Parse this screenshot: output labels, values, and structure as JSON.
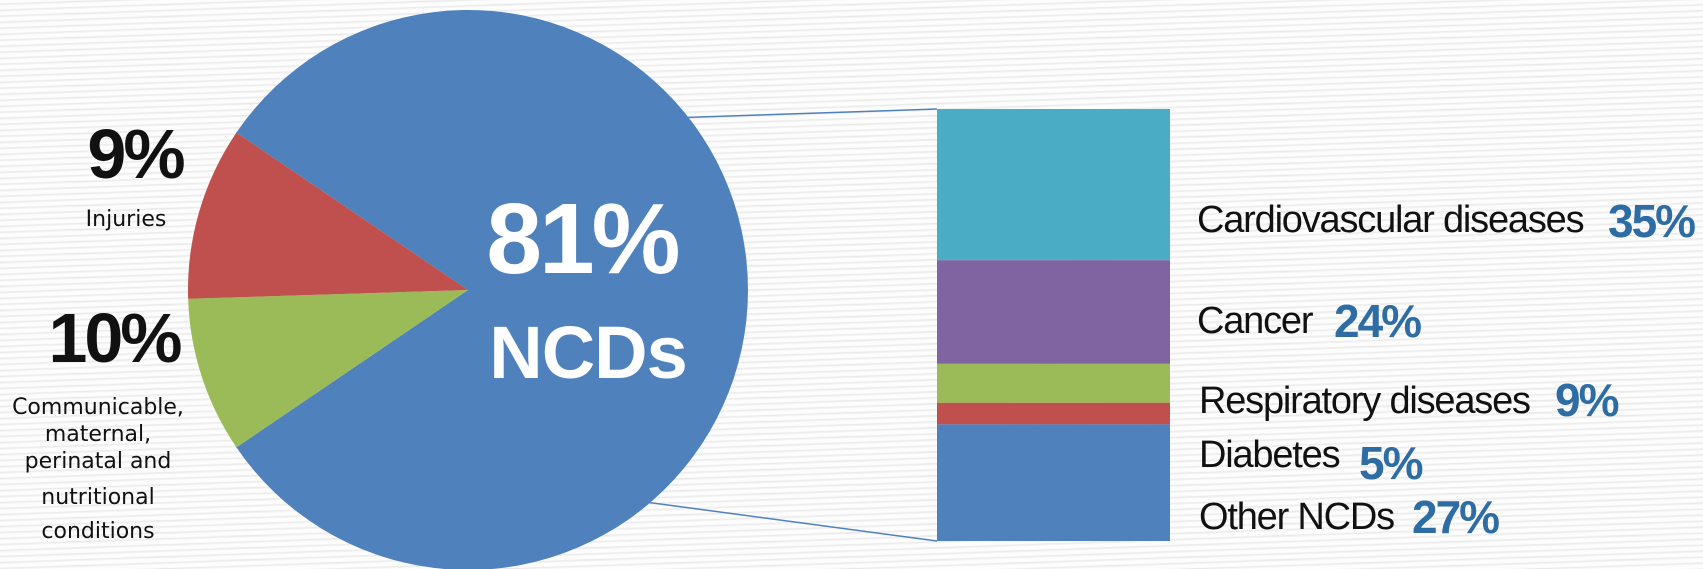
{
  "chart_data": [
    {
      "type": "pie",
      "title": "",
      "slices": [
        {
          "label": "NCDs",
          "value": 81,
          "value_label": "81%",
          "color": "#4f81bd"
        },
        {
          "label": "Injuries",
          "value": 9,
          "value_label": "9%",
          "color": "#9bbb59"
        },
        {
          "label": "Communicable, maternal, perinatal and nutritional conditions",
          "label_lines": [
            "Communicable,",
            "maternal,",
            "perinatal and",
            "nutritional",
            "conditions"
          ],
          "value": 10,
          "value_label": "10%",
          "color": "#c0504d"
        }
      ]
    },
    {
      "type": "bar",
      "stacked": true,
      "title": "",
      "total_label": "81%",
      "categories": [
        {
          "label": "Cardiovascular diseases",
          "value": 35,
          "value_label": "35%",
          "color": "#4bacc6"
        },
        {
          "label": "Cancer",
          "value": 24,
          "value_label": "24%",
          "color": "#8064a2"
        },
        {
          "label": "Respiratory diseases",
          "value": 9,
          "value_label": "9%",
          "color": "#9bbb59"
        },
        {
          "label": "Diabetes",
          "value": 5,
          "value_label": "5%",
          "color": "#c0504d"
        },
        {
          "label": "Other NCDs",
          "value": 27,
          "value_label": "27%",
          "color": "#4f81bd"
        }
      ]
    }
  ],
  "colors": {
    "value_text": "#2e6da4",
    "label_text": "#111111",
    "connector": "#4f81bd"
  }
}
